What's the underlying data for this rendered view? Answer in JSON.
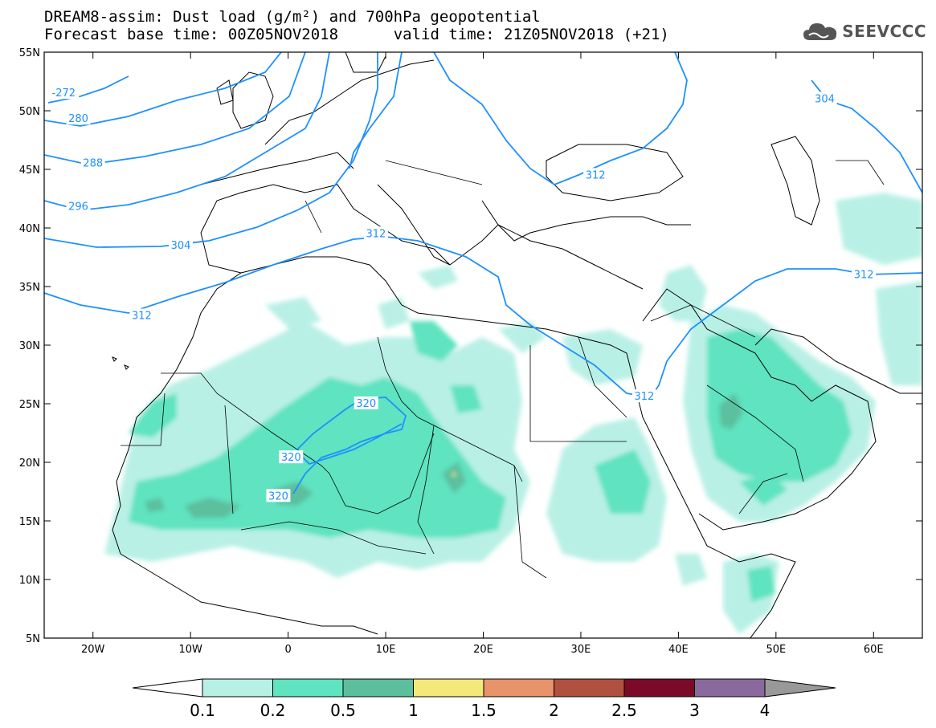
{
  "title": {
    "line1": "DREAM8-assim: Dust load (g/m²) and 700hPa geopotential",
    "line2_base": "Forecast base time: 00Z05NOV2018",
    "line2_valid": "valid time: 21Z05NOV2018 (+21)"
  },
  "logo": {
    "text": "SEEVCCC",
    "icon": "cloud-icon"
  },
  "map": {
    "lon_range": [
      -25,
      65
    ],
    "lat_range": [
      5,
      55
    ],
    "lat_ticks": [
      "55N",
      "50N",
      "45N",
      "40N",
      "35N",
      "30N",
      "25N",
      "20N",
      "15N",
      "10N",
      "5N"
    ],
    "lon_ticks": [
      "20W",
      "10W",
      "0",
      "10E",
      "20E",
      "30E",
      "40E",
      "50E",
      "60E"
    ],
    "contour_labels": [
      {
        "text": "-272",
        "lon": -23.0,
        "lat": 51.5
      },
      {
        "text": "280",
        "lon": -21.5,
        "lat": 49.3
      },
      {
        "text": "288",
        "lon": -20.0,
        "lat": 45.5
      },
      {
        "text": "296",
        "lon": -21.5,
        "lat": 41.8
      },
      {
        "text": "304",
        "lon": -11.0,
        "lat": 38.5
      },
      {
        "text": "312",
        "lon": -15.0,
        "lat": 32.5
      },
      {
        "text": "312",
        "lon": 9.0,
        "lat": 39.5
      },
      {
        "text": "312",
        "lon": 31.5,
        "lat": 44.5
      },
      {
        "text": "312",
        "lon": 36.5,
        "lat": 25.6
      },
      {
        "text": "312",
        "lon": 59.0,
        "lat": 36.0
      },
      {
        "text": "304",
        "lon": 55.0,
        "lat": 51.0
      },
      {
        "text": "320",
        "lon": 8.0,
        "lat": 25.0
      },
      {
        "text": "320",
        "lon": 0.3,
        "lat": 20.4
      },
      {
        "text": "320",
        "lon": -1.0,
        "lat": 17.1
      }
    ]
  },
  "legend": {
    "colors": [
      "#b9f0e6",
      "#5fe3c0",
      "#5bbf9e",
      "#f5e87a",
      "#e9936a",
      "#b0503e",
      "#7a0a28",
      "#8a6a9c"
    ],
    "low_color": "#ffffff",
    "high_color": "#999999",
    "labels": [
      "0.1",
      "0.2",
      "0.5",
      "1",
      "1.5",
      "2",
      "2.5",
      "3",
      "4"
    ]
  }
}
